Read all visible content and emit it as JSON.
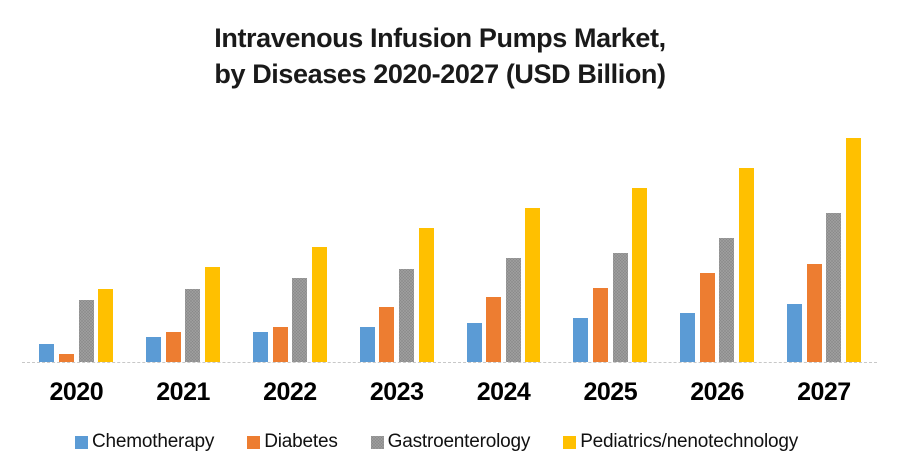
{
  "chart_data": {
    "type": "bar",
    "title": "Intravenous Infusion Pumps Market, by Diseases 2020-2027 (USD Billion)",
    "title_lines": [
      "Intravenous Infusion Pumps Market,",
      "by Diseases 2020-2027 (USD Billion)"
    ],
    "categories": [
      "2020",
      "2021",
      "2022",
      "2023",
      "2024",
      "2025",
      "2026",
      "2027"
    ],
    "series": [
      {
        "name": "Chemotherapy",
        "color": "#5B9BD5",
        "pattern": "solid",
        "values": [
          1.8,
          2.5,
          3.0,
          3.5,
          3.9,
          4.4,
          4.9,
          5.8
        ]
      },
      {
        "name": "Diabetes",
        "color": "#ED7D31",
        "pattern": "solid",
        "values": [
          0.8,
          3.0,
          3.5,
          5.5,
          6.5,
          7.4,
          8.9,
          9.8
        ]
      },
      {
        "name": "Gastroenterology",
        "color": "#A6A6A6",
        "pattern": "stipple",
        "values": [
          6.2,
          7.3,
          8.4,
          9.3,
          10.4,
          10.9,
          12.4,
          14.9
        ]
      },
      {
        "name": "Pediatrics/nenotechnology",
        "color": "#FFC000",
        "pattern": "solid",
        "values": [
          7.3,
          9.5,
          11.5,
          13.4,
          15.4,
          17.4,
          19.4,
          22.4
        ]
      }
    ],
    "xlabel": "",
    "ylabel": "",
    "ylim": [
      0,
      24
    ],
    "y_axis_labels_visible": false,
    "gridlines": false,
    "legend_position": "bottom",
    "axis_line_color": "#C8C8C8",
    "title_color": "#1A1A1A",
    "label_color": "#000000",
    "background": "#FFFFFF",
    "values_note": "estimated relative units; no y-axis scale shown in chart"
  }
}
